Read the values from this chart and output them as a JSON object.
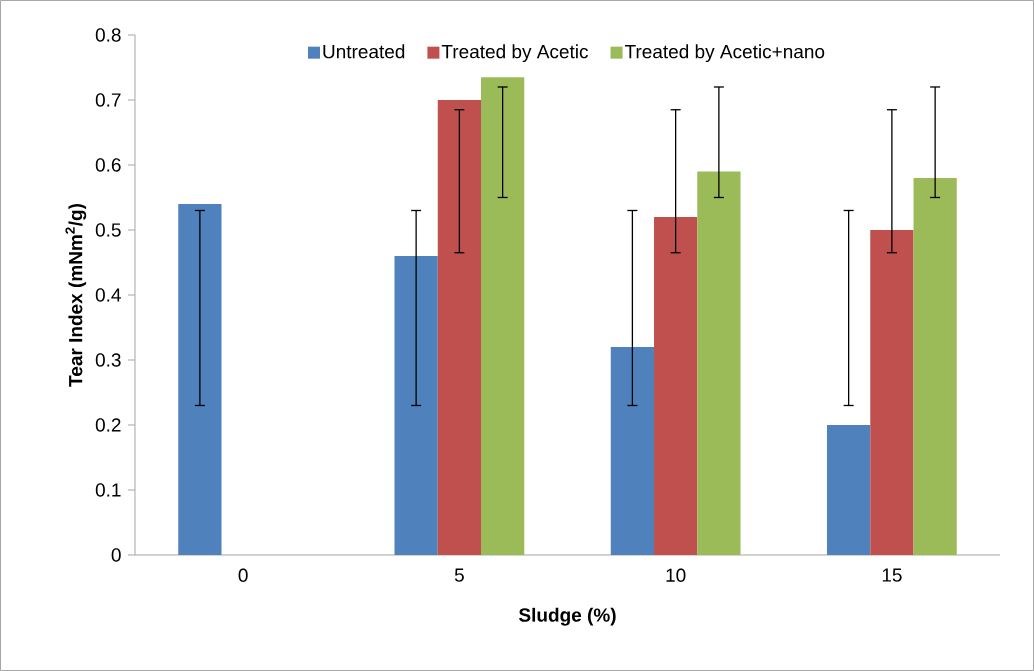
{
  "chart_data": {
    "type": "bar",
    "xlabel": "Sludge (%)",
    "ylabel": "Tear Index (mNm$^{2}$/g)",
    "categories": [
      "0",
      "5",
      "10",
      "15"
    ],
    "series": [
      {
        "name": "Untreated",
        "color": "#4f81bd",
        "values": [
          0.54,
          0.46,
          0.32,
          0.2
        ],
        "errors": [
          [
            0.23,
            0.53
          ],
          [
            0.23,
            0.53
          ],
          [
            0.23,
            0.53
          ],
          [
            0.23,
            0.53
          ]
        ]
      },
      {
        "name": "Treated by Acetic",
        "color": "#c0504d",
        "values": [
          null,
          0.7,
          0.52,
          0.5
        ],
        "errors": [
          null,
          [
            0.465,
            0.685
          ],
          [
            0.465,
            0.685
          ],
          [
            0.465,
            0.685
          ]
        ]
      },
      {
        "name": "Treated by Acetic+nano",
        "color": "#9bbb59",
        "values": [
          null,
          0.735,
          0.59,
          0.58
        ],
        "errors": [
          null,
          [
            0.55,
            0.72
          ],
          [
            0.55,
            0.72
          ],
          [
            0.55,
            0.72
          ]
        ]
      }
    ],
    "ylim": [
      0,
      0.8
    ],
    "yticks": [
      0,
      0.1,
      0.2,
      0.3,
      0.4,
      0.5,
      0.6,
      0.7,
      0.8
    ],
    "grid": false,
    "legend": "top"
  }
}
